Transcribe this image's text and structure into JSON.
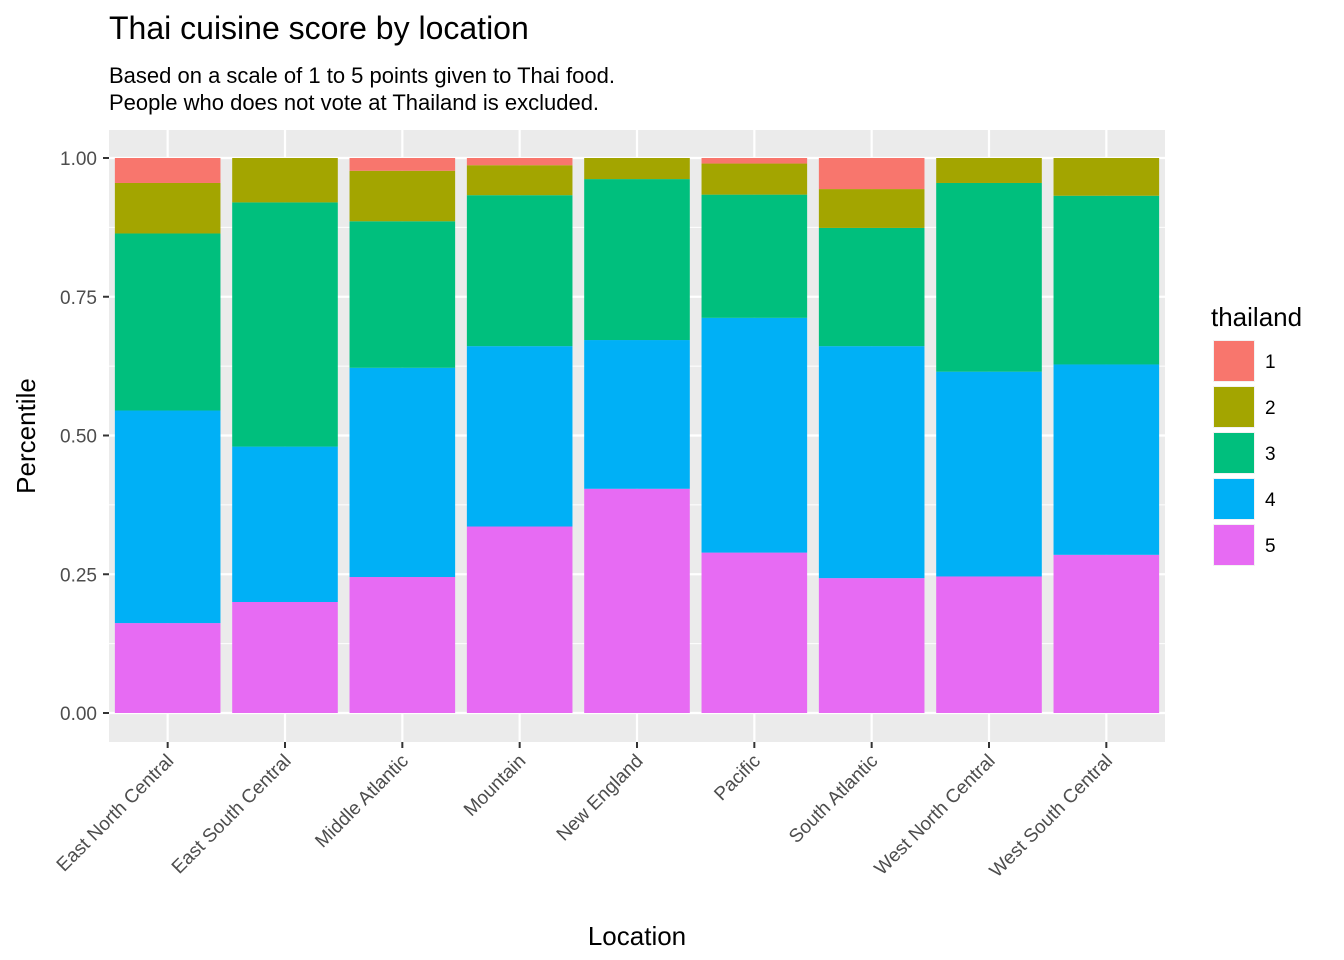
{
  "chart_data": {
    "type": "bar",
    "stacked": true,
    "title": "Thai cuisine score by location",
    "subtitle": [
      "Based on a scale of 1 to 5 points given to Thai food.",
      "People who does not vote at Thailand is excluded."
    ],
    "xlabel": "Location",
    "ylabel": "Percentile",
    "ylim": [
      0,
      1
    ],
    "yticks": [
      0,
      0.25,
      0.5,
      0.75,
      1
    ],
    "ytick_labels": [
      "0.00",
      "0.25",
      "0.50",
      "0.75",
      "1.00"
    ],
    "categories": [
      "East North Central",
      "East South Central",
      "Middle Atlantic",
      "Mountain",
      "New England",
      "Pacific",
      "South Atlantic",
      "West North Central",
      "West South Central"
    ],
    "legend": {
      "title": "thailand",
      "position": "right"
    },
    "stack_order_bottom_to_top": [
      "5",
      "4",
      "3",
      "2",
      "1"
    ],
    "series": [
      {
        "name": "1",
        "color": "#F8766D",
        "values": [
          0.045,
          0.0,
          0.023,
          0.013,
          0.0,
          0.01,
          0.056,
          0.0,
          0.0
        ]
      },
      {
        "name": "2",
        "color": "#A3A500",
        "values": [
          0.091,
          0.08,
          0.091,
          0.054,
          0.038,
          0.056,
          0.07,
          0.045,
          0.068
        ]
      },
      {
        "name": "3",
        "color": "#00BF7D",
        "values": [
          0.319,
          0.44,
          0.264,
          0.272,
          0.29,
          0.222,
          0.213,
          0.34,
          0.304
        ]
      },
      {
        "name": "4",
        "color": "#00B0F6",
        "values": [
          0.383,
          0.28,
          0.377,
          0.325,
          0.268,
          0.423,
          0.418,
          0.369,
          0.343
        ]
      },
      {
        "name": "5",
        "color": "#E76BF3",
        "values": [
          0.162,
          0.2,
          0.245,
          0.336,
          0.404,
          0.289,
          0.243,
          0.246,
          0.285
        ]
      }
    ]
  }
}
